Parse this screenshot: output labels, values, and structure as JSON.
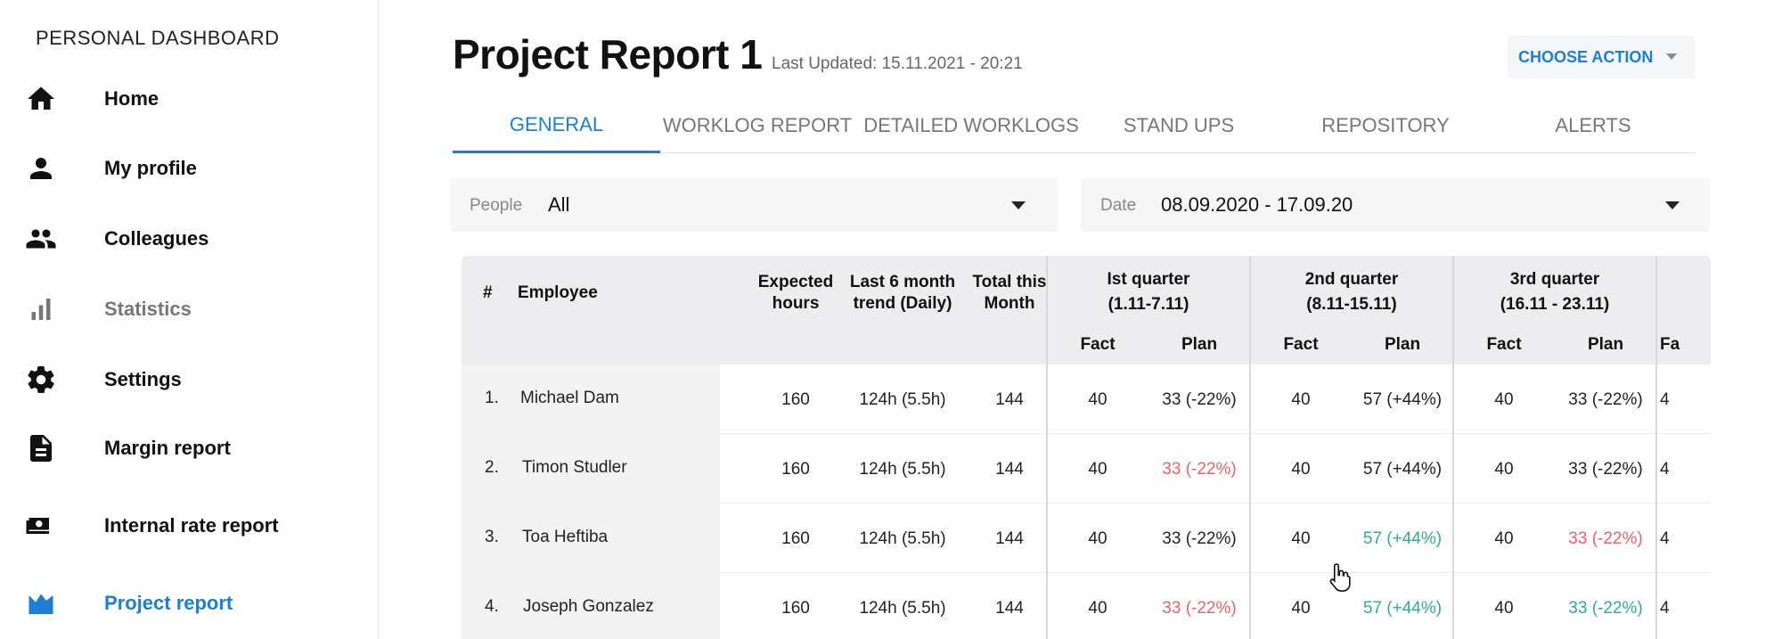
{
  "sidebar": {
    "title": "PERSONAL DASHBOARD",
    "items": [
      {
        "label": "Home",
        "icon": "home-icon"
      },
      {
        "label": "My profile",
        "icon": "person-icon"
      },
      {
        "label": "Colleagues",
        "icon": "people-icon"
      },
      {
        "label": "Statistics",
        "icon": "bar-chart-icon"
      },
      {
        "label": "Settings",
        "icon": "gear-icon"
      },
      {
        "label": "Margin report",
        "icon": "document-icon"
      },
      {
        "label": "Internal rate report",
        "icon": "cash-icon"
      },
      {
        "label": "Project report",
        "icon": "area-chart-icon"
      }
    ],
    "active_item": "Project report",
    "accent_color": "#1c7fd4"
  },
  "header": {
    "title": "Project Report 1",
    "last_updated": "Last Updated: 15.11.2021 - 20:21",
    "action_button": "CHOOSE ACTION"
  },
  "tabs": [
    {
      "label": "GENERAL"
    },
    {
      "label": "WORKLOG REPORT"
    },
    {
      "label": "DETAILED WORKLOGS"
    },
    {
      "label": "STAND UPS"
    },
    {
      "label": "REPOSITORY"
    },
    {
      "label": "ALERTS"
    }
  ],
  "active_tab": "GENERAL",
  "filters": {
    "people": {
      "label": "People",
      "value": "All"
    },
    "date": {
      "label": "Date",
      "value": "08.09.2020 - 17.09.20"
    }
  },
  "table": {
    "headers": {
      "num": "#",
      "employee": "Employee",
      "expected_line1": "Expected",
      "expected_line2": "hours",
      "trend_line1": "Last 6 month",
      "trend_line2": "trend (Daily)",
      "total_line1": "Total this",
      "total_line2": "Month",
      "fact": "Fact",
      "plan": "Plan",
      "partial": "Fa"
    },
    "quarters": [
      {
        "name": "Ist quarter",
        "range": "(1.11-7.11)"
      },
      {
        "name": "2nd quarter",
        "range": "(8.11-15.11)"
      },
      {
        "name": "3rd quarter",
        "range": "(16.11 - 23.11)"
      }
    ],
    "rows": [
      {
        "num": "1.",
        "name": "Michael Dam",
        "expected": "160",
        "trend": "124h (5.5h)",
        "total": "144",
        "q": [
          {
            "fact": "40",
            "plan": "33 (-22%)",
            "status": "normal"
          },
          {
            "fact": "40",
            "plan": "57 (+44%)",
            "status": "normal"
          },
          {
            "fact": "40",
            "plan": "33 (-22%)",
            "status": "normal"
          }
        ],
        "partial": "4"
      },
      {
        "num": "2.",
        "name": "Timon Studler",
        "expected": "160",
        "trend": "124h (5.5h)",
        "total": "144",
        "q": [
          {
            "fact": "40",
            "plan": "33 (-22%)",
            "status": "negative"
          },
          {
            "fact": "40",
            "plan": "57 (+44%)",
            "status": "normal"
          },
          {
            "fact": "40",
            "plan": "33 (-22%)",
            "status": "normal"
          }
        ],
        "partial": "4"
      },
      {
        "num": "3.",
        "name": "Toa Heftiba",
        "expected": "160",
        "trend": "124h (5.5h)",
        "total": "144",
        "q": [
          {
            "fact": "40",
            "plan": "33 (-22%)",
            "status": "normal"
          },
          {
            "fact": "40",
            "plan": "57 (+44%)",
            "status": "positive"
          },
          {
            "fact": "40",
            "plan": "33 (-22%)",
            "status": "negative"
          }
        ],
        "partial": "4"
      },
      {
        "num": "4.",
        "name": "Joseph Gonzalez",
        "expected": "160",
        "trend": "124h (5.5h)",
        "total": "144",
        "q": [
          {
            "fact": "40",
            "plan": "33 (-22%)",
            "status": "negative"
          },
          {
            "fact": "40",
            "plan": "57 (+44%)",
            "status": "positive"
          },
          {
            "fact": "40",
            "plan": "33 (-22%)",
            "status": "positive"
          }
        ],
        "partial": "4"
      }
    ],
    "status_colors": {
      "negative": "#e5636b",
      "positive": "#2fae8f",
      "normal": "#222222"
    }
  }
}
